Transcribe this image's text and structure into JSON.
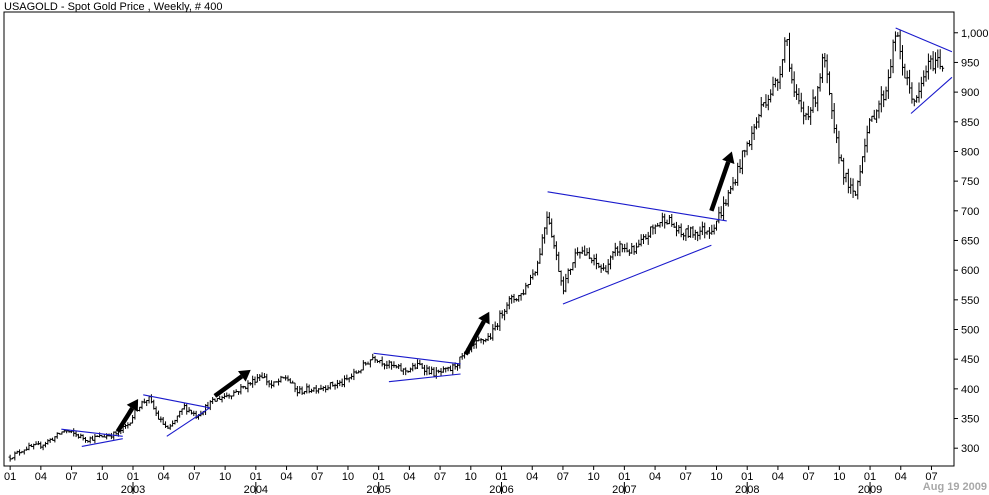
{
  "chart_data": {
    "type": "ohlc-bar",
    "title": "USAGOLD - Spot Gold Price , Weekly, # 400",
    "date_stamp": "Aug 19  2009",
    "ylim": [
      270,
      1035
    ],
    "y_ticks": [
      {
        "value": 300,
        "label": "300"
      },
      {
        "value": 350,
        "label": "350"
      },
      {
        "value": 400,
        "label": "400"
      },
      {
        "value": 450,
        "label": "450"
      },
      {
        "value": 500,
        "label": "500"
      },
      {
        "value": 550,
        "label": "550"
      },
      {
        "value": 600,
        "label": "600"
      },
      {
        "value": 650,
        "label": "650"
      },
      {
        "value": 700,
        "label": "700"
      },
      {
        "value": 750,
        "label": "750"
      },
      {
        "value": 800,
        "label": "800"
      },
      {
        "value": 850,
        "label": "850"
      },
      {
        "value": 900,
        "label": "900"
      },
      {
        "value": 950,
        "label": "950"
      },
      {
        "value": 1000,
        "label": "1,000"
      }
    ],
    "x_ticks": [
      {
        "t": 0,
        "label": "01"
      },
      {
        "t": 3,
        "label": "04"
      },
      {
        "t": 6,
        "label": "07"
      },
      {
        "t": 9,
        "label": "10"
      },
      {
        "t": 12,
        "label": "01"
      },
      {
        "t": 15,
        "label": "04"
      },
      {
        "t": 18,
        "label": "07"
      },
      {
        "t": 21,
        "label": "10"
      },
      {
        "t": 24,
        "label": "01"
      },
      {
        "t": 27,
        "label": "04"
      },
      {
        "t": 30,
        "label": "07"
      },
      {
        "t": 33,
        "label": "10"
      },
      {
        "t": 36,
        "label": "01"
      },
      {
        "t": 39,
        "label": "04"
      },
      {
        "t": 42,
        "label": "07"
      },
      {
        "t": 45,
        "label": "10"
      },
      {
        "t": 48,
        "label": "01"
      },
      {
        "t": 51,
        "label": "04"
      },
      {
        "t": 54,
        "label": "07"
      },
      {
        "t": 57,
        "label": "10"
      },
      {
        "t": 60,
        "label": "01"
      },
      {
        "t": 63,
        "label": "04"
      },
      {
        "t": 66,
        "label": "07"
      },
      {
        "t": 69,
        "label": "10"
      },
      {
        "t": 72,
        "label": "01"
      },
      {
        "t": 75,
        "label": "04"
      },
      {
        "t": 78,
        "label": "07"
      },
      {
        "t": 81,
        "label": "10"
      },
      {
        "t": 84,
        "label": "01"
      },
      {
        "t": 87,
        "label": "04"
      },
      {
        "t": 90,
        "label": "07"
      }
    ],
    "x_range": [
      -0.6,
      92.2
    ],
    "year_labels": [
      {
        "t": 12,
        "label": "2003"
      },
      {
        "t": 24,
        "label": "2004"
      },
      {
        "t": 36,
        "label": "2005"
      },
      {
        "t": 48,
        "label": "2006"
      },
      {
        "t": 60,
        "label": "2007"
      },
      {
        "t": 72,
        "label": "2008"
      },
      {
        "t": 84,
        "label": "2009"
      }
    ],
    "price_path": [
      [
        0,
        285
      ],
      [
        1.5,
        300
      ],
      [
        3,
        305
      ],
      [
        4.5,
        320
      ],
      [
        5.3,
        330
      ],
      [
        6.5,
        322
      ],
      [
        7.5,
        315
      ],
      [
        9,
        320
      ],
      [
        10.5,
        325
      ],
      [
        11.5,
        340
      ],
      [
        12.5,
        370
      ],
      [
        13.5,
        385
      ],
      [
        14.5,
        350
      ],
      [
        15.5,
        330
      ],
      [
        17,
        370
      ],
      [
        18.2,
        355
      ],
      [
        19.5,
        375
      ],
      [
        20.5,
        385
      ],
      [
        22,
        395
      ],
      [
        23.5,
        410
      ],
      [
        24.5,
        425
      ],
      [
        25.5,
        405
      ],
      [
        27,
        420
      ],
      [
        28,
        395
      ],
      [
        29.5,
        400
      ],
      [
        31,
        405
      ],
      [
        32.5,
        410
      ],
      [
        34,
        430
      ],
      [
        35.5,
        455
      ],
      [
        37,
        440
      ],
      [
        38.5,
        430
      ],
      [
        40,
        440
      ],
      [
        41.5,
        425
      ],
      [
        43,
        432
      ],
      [
        44,
        450
      ],
      [
        45.5,
        475
      ],
      [
        47,
        490
      ],
      [
        48.5,
        545
      ],
      [
        50,
        560
      ],
      [
        51.5,
        610
      ],
      [
        52.5,
        700
      ],
      [
        53.2,
        635
      ],
      [
        54,
        570
      ],
      [
        55.5,
        640
      ],
      [
        56.5,
        620
      ],
      [
        58,
        600
      ],
      [
        59.5,
        640
      ],
      [
        61,
        630
      ],
      [
        62.5,
        665
      ],
      [
        64,
        690
      ],
      [
        65.5,
        660
      ],
      [
        67,
        665
      ],
      [
        68.5,
        670
      ],
      [
        69.5,
        700
      ],
      [
        70.5,
        740
      ],
      [
        71.5,
        790
      ],
      [
        72.5,
        830
      ],
      [
        73.5,
        880
      ],
      [
        75,
        920
      ],
      [
        75.8,
        1000
      ],
      [
        76.5,
        900
      ],
      [
        77.5,
        860
      ],
      [
        78.5,
        880
      ],
      [
        79.5,
        960
      ],
      [
        80.5,
        830
      ],
      [
        81.5,
        760
      ],
      [
        82.5,
        720
      ],
      [
        83.5,
        820
      ],
      [
        84.5,
        870
      ],
      [
        85.5,
        900
      ],
      [
        86.5,
        1000
      ],
      [
        87.5,
        920
      ],
      [
        88.5,
        880
      ],
      [
        89.5,
        940
      ],
      [
        90.5,
        955
      ],
      [
        91.2,
        945
      ]
    ],
    "trendlines": [
      {
        "points": [
          [
            5,
            332
          ],
          [
            11,
            320
          ]
        ]
      },
      {
        "points": [
          [
            7,
            303
          ],
          [
            11,
            316
          ]
        ]
      },
      {
        "points": [
          [
            13,
            390
          ],
          [
            19.5,
            368
          ]
        ]
      },
      {
        "points": [
          [
            15.3,
            320
          ],
          [
            19.5,
            368
          ]
        ]
      },
      {
        "points": [
          [
            35.5,
            460
          ],
          [
            44,
            442
          ]
        ]
      },
      {
        "points": [
          [
            37,
            412
          ],
          [
            44,
            425
          ]
        ]
      },
      {
        "points": [
          [
            52.5,
            732
          ],
          [
            70,
            683
          ]
        ]
      },
      {
        "points": [
          [
            54,
            543
          ],
          [
            68.5,
            642
          ]
        ]
      },
      {
        "points": [
          [
            86.5,
            1008
          ],
          [
            92,
            968
          ]
        ]
      },
      {
        "points": [
          [
            88,
            864
          ],
          [
            92,
            925
          ]
        ]
      }
    ],
    "arrows": [
      {
        "from": [
          10.5,
          328
        ],
        "to": [
          12.5,
          383
        ]
      },
      {
        "from": [
          20,
          388
        ],
        "to": [
          23.5,
          432
        ]
      },
      {
        "from": [
          44.5,
          458
        ],
        "to": [
          46.8,
          530
        ]
      },
      {
        "from": [
          68.5,
          700
        ],
        "to": [
          70.5,
          800
        ]
      }
    ]
  }
}
